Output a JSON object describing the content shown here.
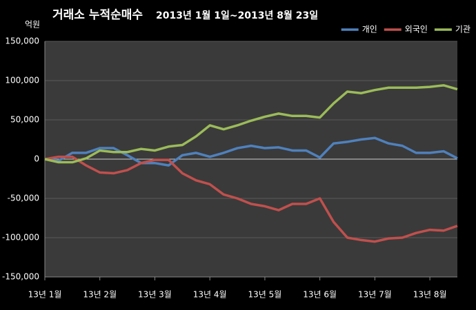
{
  "chart_data": {
    "type": "line",
    "title": "거래소 누적순매수",
    "subtitle": "2013년 1월 1일~2013년 8월 23일",
    "y_label": "억원",
    "categories": [
      "13년 1월",
      null,
      null,
      null,
      "13년 2월",
      null,
      null,
      null,
      "13년 3월",
      null,
      null,
      null,
      "13년 4월",
      null,
      null,
      null,
      "13년 5월",
      null,
      null,
      null,
      "13년 6월",
      null,
      null,
      null,
      "13년 7월",
      null,
      null,
      null,
      "13년 8월",
      null,
      null
    ],
    "series": [
      {
        "name": "개인",
        "color": "#4f81bd",
        "values": [
          0,
          -2000,
          8000,
          8000,
          14000,
          14000,
          5000,
          -5000,
          -5000,
          -8000,
          5000,
          8000,
          3000,
          8000,
          14000,
          17000,
          14000,
          15000,
          11000,
          11000,
          2000,
          20000,
          22000,
          25000,
          27000,
          20000,
          17000,
          8000,
          8000,
          10000,
          1000
        ]
      },
      {
        "name": "외국인",
        "color": "#c0504d",
        "values": [
          0,
          3000,
          3000,
          -8000,
          -17000,
          -18000,
          -14000,
          -5000,
          -1000,
          -1000,
          -18000,
          -27000,
          -32000,
          -45000,
          -50000,
          -57000,
          -60000,
          -65000,
          -57000,
          -57000,
          -50000,
          -80000,
          -100000,
          -103000,
          -105000,
          -101000,
          -100000,
          -94000,
          -90000,
          -91000,
          -85000
        ]
      },
      {
        "name": "기관",
        "color": "#9bbb59",
        "values": [
          0,
          -4000,
          -4000,
          1000,
          11000,
          9000,
          9000,
          13000,
          11000,
          16000,
          18000,
          29000,
          43000,
          38000,
          43000,
          49000,
          54000,
          58000,
          55000,
          55000,
          53000,
          71000,
          86000,
          84000,
          88000,
          91000,
          91000,
          91000,
          92000,
          94000,
          89000
        ]
      }
    ],
    "ylim": [
      -150000,
      150000
    ],
    "yticks": [
      {
        "value": -150000,
        "label": "-150,000"
      },
      {
        "value": -100000,
        "label": "-100,000"
      },
      {
        "value": -50000,
        "label": "-50,000"
      },
      0,
      {
        "value": 50000,
        "label": "50,000"
      },
      {
        "value": 100000,
        "label": "100,000"
      },
      {
        "value": 150000,
        "label": "150,000"
      }
    ],
    "grid": true,
    "legend": "top-right"
  }
}
